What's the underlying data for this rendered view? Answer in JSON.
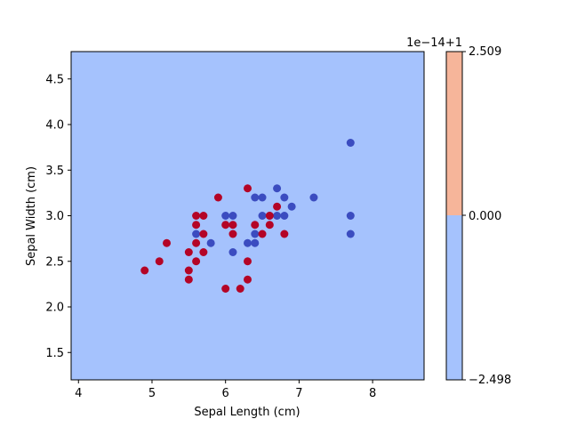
{
  "chart_data": {
    "type": "scatter",
    "title": "",
    "xlabel": "Sepal Length (cm)",
    "ylabel": "Sepal Width (cm)",
    "xlim": [
      3.9,
      8.7
    ],
    "ylim": [
      1.2,
      4.8
    ],
    "xticks": [
      4,
      5,
      6,
      7,
      8
    ],
    "yticks": [
      1.5,
      2.0,
      2.5,
      3.0,
      3.5,
      4.0,
      4.5
    ],
    "grid": false,
    "background_region": {
      "color": "#a5c2fd"
    },
    "series": [
      {
        "color": "#3b4cc0",
        "points": [
          [
            7.7,
            3.8
          ],
          [
            7.7,
            3.0
          ],
          [
            7.7,
            2.8
          ],
          [
            7.2,
            3.2
          ],
          [
            6.9,
            3.1
          ],
          [
            6.8,
            3.2
          ],
          [
            6.8,
            3.0
          ],
          [
            6.7,
            3.3
          ],
          [
            6.7,
            3.0
          ],
          [
            6.6,
            3.0
          ],
          [
            6.5,
            3.2
          ],
          [
            6.5,
            3.0
          ],
          [
            6.4,
            3.2
          ],
          [
            6.4,
            2.8
          ],
          [
            6.4,
            2.7
          ],
          [
            6.3,
            2.7
          ],
          [
            6.1,
            3.0
          ],
          [
            6.1,
            2.6
          ],
          [
            6.0,
            3.0
          ],
          [
            5.8,
            2.7
          ],
          [
            5.6,
            2.8
          ]
        ]
      },
      {
        "color": "#b40426",
        "points": [
          [
            6.8,
            2.8
          ],
          [
            6.7,
            3.1
          ],
          [
            6.6,
            2.9
          ],
          [
            6.6,
            3.0
          ],
          [
            6.5,
            2.8
          ],
          [
            6.4,
            2.9
          ],
          [
            6.3,
            3.3
          ],
          [
            6.3,
            2.5
          ],
          [
            6.3,
            2.3
          ],
          [
            6.2,
            2.2
          ],
          [
            6.1,
            2.9
          ],
          [
            6.1,
            2.8
          ],
          [
            6.0,
            2.9
          ],
          [
            6.0,
            2.2
          ],
          [
            5.9,
            3.2
          ],
          [
            5.7,
            3.0
          ],
          [
            5.7,
            2.8
          ],
          [
            5.7,
            2.6
          ],
          [
            5.6,
            3.0
          ],
          [
            5.6,
            2.9
          ],
          [
            5.6,
            2.7
          ],
          [
            5.6,
            2.5
          ],
          [
            5.5,
            2.6
          ],
          [
            5.5,
            2.4
          ],
          [
            5.5,
            2.3
          ],
          [
            5.2,
            2.7
          ],
          [
            5.1,
            2.5
          ],
          [
            4.9,
            2.4
          ]
        ]
      }
    ],
    "colorbar": {
      "offset_label": "1e−14+1",
      "tick_labels": [
        "2.509",
        "0.000",
        "−2.498"
      ],
      "range": [
        -2.498,
        2.509
      ],
      "split_value": 0.0,
      "lower_color": "#a5c2fd",
      "upper_color": "#f6b59a"
    }
  }
}
